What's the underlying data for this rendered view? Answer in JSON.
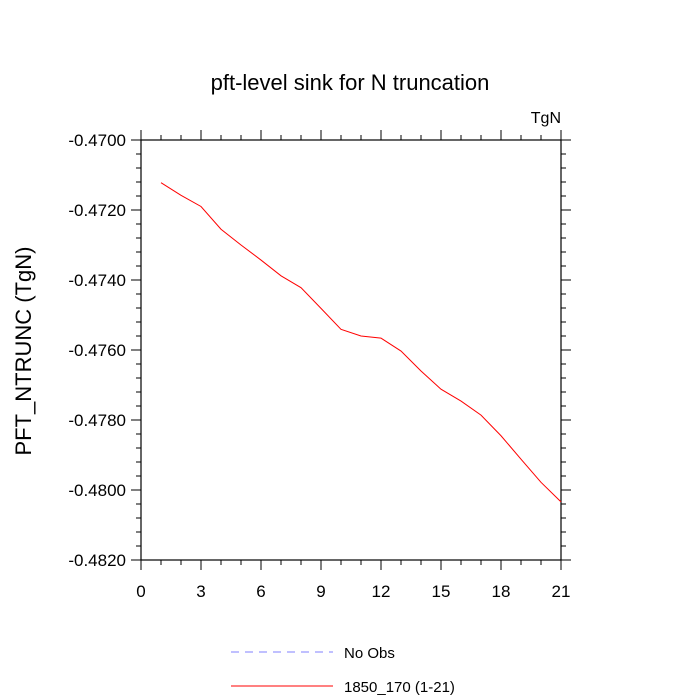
{
  "chart_data": {
    "type": "line",
    "title": "pft-level sink for N truncation",
    "units_label": "TgN",
    "xlabel": "",
    "ylabel": "PFT_NTRUNC  (TgN)",
    "xlim": [
      0,
      21
    ],
    "ylim": [
      -0.482,
      -0.47
    ],
    "x_ticks": [
      0,
      3,
      6,
      9,
      12,
      15,
      18,
      21
    ],
    "x_tick_labels": [
      "0",
      "3",
      "6",
      "9",
      "12",
      "15",
      "18",
      "21"
    ],
    "y_ticks": [
      -0.47,
      -0.472,
      -0.474,
      -0.476,
      -0.478,
      -0.48,
      -0.482
    ],
    "y_tick_labels": [
      "-0.4700",
      "-0.4720",
      "-0.4740",
      "-0.4760",
      "-0.4780",
      "-0.4800",
      "-0.4820"
    ],
    "grid": false,
    "legend_position": "bottom",
    "series": [
      {
        "name": "No Obs",
        "color": "#8080ff",
        "dash": true,
        "x": [],
        "y": []
      },
      {
        "name": "1850_170 (1-21)",
        "color": "#ff0000",
        "dash": false,
        "x": [
          1,
          2,
          3,
          4,
          5,
          6,
          7,
          8,
          9,
          10,
          11,
          12,
          13,
          14,
          15,
          16,
          17,
          18,
          19,
          20,
          21
        ],
        "y": [
          -0.47122,
          -0.47158,
          -0.4719,
          -0.47255,
          -0.473,
          -0.47343,
          -0.47388,
          -0.47422,
          -0.47481,
          -0.47541,
          -0.4756,
          -0.47566,
          -0.47603,
          -0.4766,
          -0.47712,
          -0.47746,
          -0.47786,
          -0.47845,
          -0.47912,
          -0.47978,
          -0.48034
        ]
      }
    ]
  }
}
